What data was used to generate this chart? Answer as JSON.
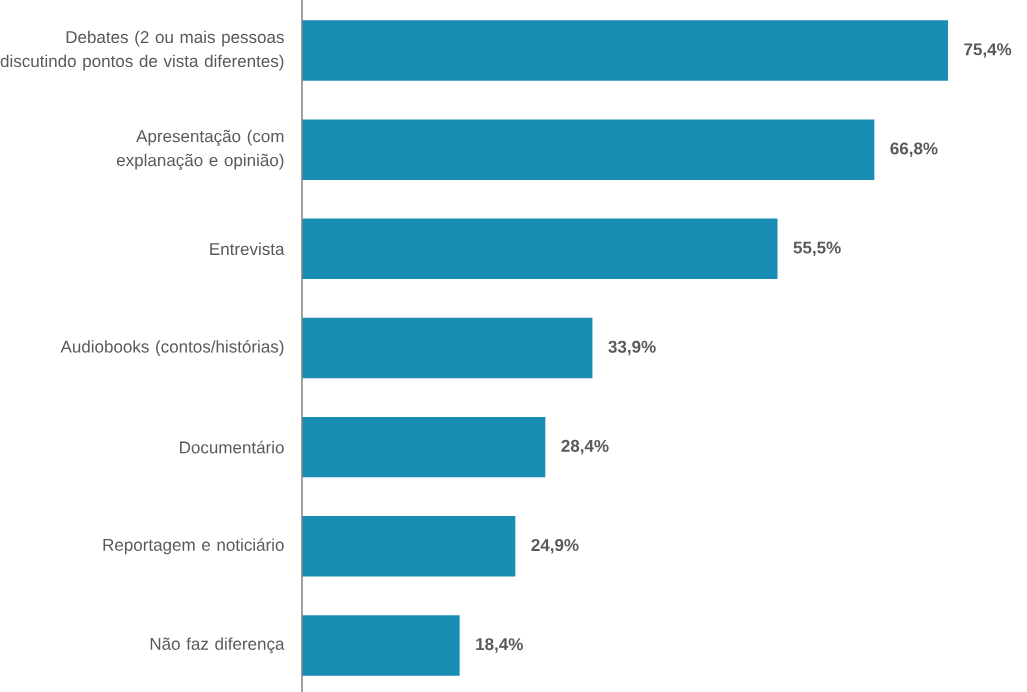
{
  "chart_data": {
    "type": "bar",
    "orientation": "horizontal",
    "categories": [
      "Debates (2 ou mais pessoas discutindo pontos de vista diferentes)",
      "Apresentação (com explanação e opinião)",
      "Entrevista",
      "Audiobooks (contos/histórias)",
      "Documentário",
      "Reportagem e noticiário",
      "Não faz diferença"
    ],
    "values": [
      75.4,
      66.8,
      55.5,
      33.9,
      28.4,
      24.9,
      18.4
    ],
    "value_labels": [
      "75,4%",
      "66,8%",
      "55,5%",
      "33,9%",
      "28,4%",
      "24,9%",
      "18,4%"
    ],
    "color": "#1a8db5"
  }
}
